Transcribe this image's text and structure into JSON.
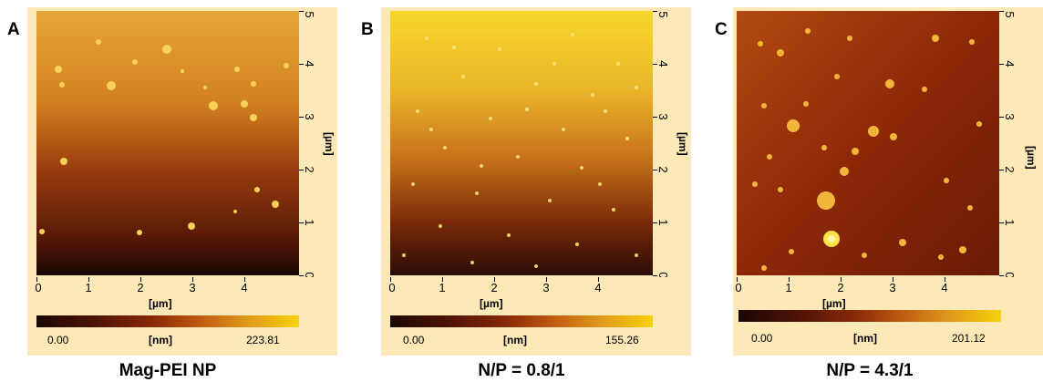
{
  "panels": [
    {
      "letter": "A",
      "caption": "Mag-PEI NP",
      "x_ticks": [
        "0",
        "1",
        "2",
        "3",
        "4"
      ],
      "y_ticks": [
        "0",
        "1",
        "2",
        "3",
        "4",
        "5"
      ],
      "x_unit": "[µm]",
      "y_unit": "[µm]",
      "cb_min": "0.00",
      "cb_unit": "[nm]",
      "cb_max": "223.81"
    },
    {
      "letter": "B",
      "caption": "N/P = 0.8/1",
      "x_ticks": [
        "0",
        "1",
        "2",
        "3",
        "4"
      ],
      "y_ticks": [
        "0",
        "1",
        "2",
        "3",
        "4",
        "5"
      ],
      "x_unit": "[µm]",
      "y_unit": "[µm]",
      "cb_min": "0.00",
      "cb_unit": "[nm]",
      "cb_max": "155.26"
    },
    {
      "letter": "C",
      "caption": "N/P = 4.3/1",
      "x_ticks": [
        "0",
        "1",
        "2",
        "3",
        "4"
      ],
      "y_ticks": [
        "0",
        "1",
        "2",
        "3",
        "4",
        "5"
      ],
      "x_unit": "[µm]",
      "y_unit": "[µm]",
      "cb_min": "0.00",
      "cb_unit": "[nm]",
      "cb_max": "201.12"
    }
  ],
  "colors": {
    "frame": "#fde9b8",
    "scale_dark": "#1a0804",
    "scale_mid": "#8a2a08",
    "scale_orange": "#d9760f",
    "scale_bright": "#f6d208"
  }
}
